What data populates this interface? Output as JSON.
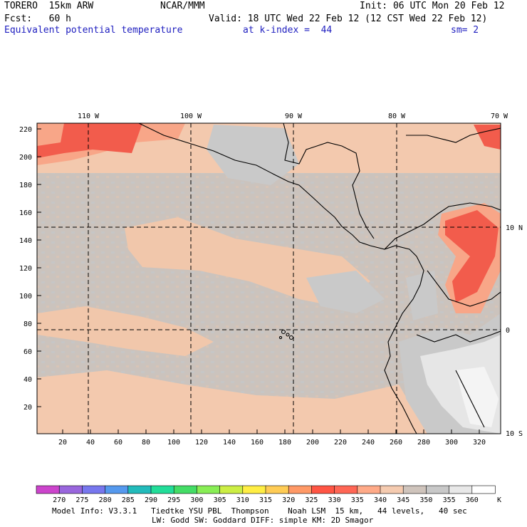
{
  "header": {
    "model": "TORERO  15km ARW",
    "org": "NCAR/MMM",
    "init": "Init: 06 UTC Mon 20 Feb 12",
    "fcst": "Fcst:   60 h",
    "valid": "Valid: 18 UTC Wed 22 Feb 12 (12 CST Wed 22 Feb 12)",
    "field": "Equivalent potential temperature",
    "level": "at k-index =  44",
    "smooth": "sm= 2"
  },
  "map": {
    "x_ticks": [
      "20",
      "40",
      "60",
      "80",
      "100",
      "120",
      "140",
      "160",
      "180",
      "200",
      "220",
      "240",
      "260",
      "280",
      "300",
      "320"
    ],
    "y_ticks": [
      "20",
      "40",
      "60",
      "80",
      "100",
      "120",
      "140",
      "160",
      "180",
      "200",
      "220"
    ],
    "lon_labels": [
      "110 W",
      "100 W",
      "90 W",
      "80 W",
      "70 W"
    ],
    "lat_labels": [
      "10 N",
      "0",
      "10 S"
    ]
  },
  "legend": {
    "values": [
      "270",
      "275",
      "280",
      "285",
      "290",
      "295",
      "300",
      "305",
      "310",
      "315",
      "320",
      "325",
      "330",
      "335",
      "340",
      "345",
      "350",
      "355",
      "360"
    ],
    "unit": "K",
    "colors": [
      "#cc44cc",
      "#9966dd",
      "#7777ee",
      "#5599ee",
      "#22bbbb",
      "#22dd99",
      "#44dd66",
      "#88ee55",
      "#ccee44",
      "#ffee44",
      "#ffcc55",
      "#ff9966",
      "#ff5544",
      "#ff6655",
      "#ffaa88",
      "#f5cbb0",
      "#cfc4bc",
      "#c8c8c8",
      "#e8e8e8",
      "#ffffff"
    ]
  },
  "footer": {
    "line1": "Model Info: V3.3.1   Tiedtke YSU PBL  Thompson    Noah LSM  15 km,   44 levels,   40 sec",
    "line2": "LW: Godd SW: Goddard DIFF: simple KM: 2D Smagor"
  }
}
